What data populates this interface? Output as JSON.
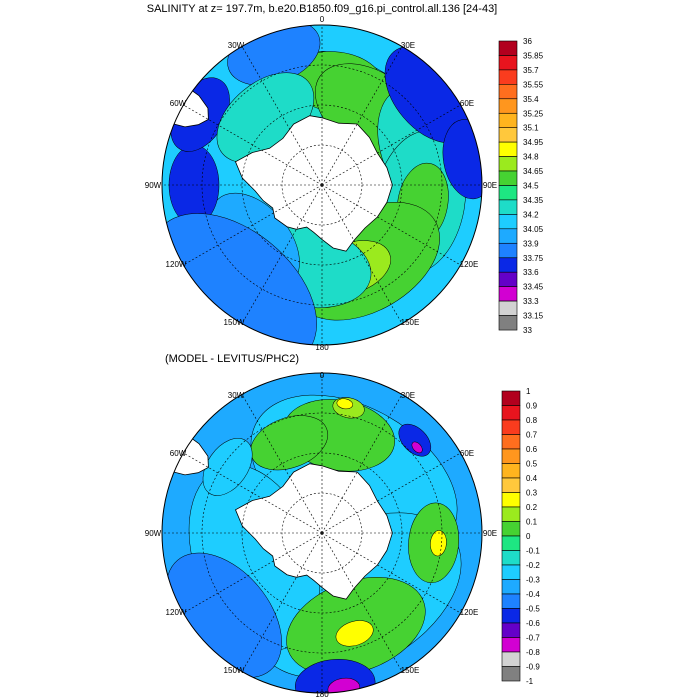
{
  "panels": [
    {
      "id": "top",
      "title": "SALINITY at z= 197.7m, b.e20.B1850.f09_g16.pi_control.all.136 [24-43]",
      "lon_labels": {
        "0": "0",
        "30E": "30E",
        "60E": "60E",
        "90E": "90E",
        "120E": "120E",
        "150E": "150E",
        "180": "180",
        "150W": "150W",
        "120W": "120W",
        "90W": "90W",
        "60W": "60W",
        "30W": "30W"
      },
      "colorbar": {
        "labels": [
          "36",
          "35.85",
          "35.7",
          "35.55",
          "35.4",
          "35.25",
          "35.1",
          "34.95",
          "34.8",
          "34.65",
          "34.5",
          "34.35",
          "34.2",
          "34.05",
          "33.9",
          "33.75",
          "33.6",
          "33.45",
          "33.3",
          "33.15",
          "33"
        ],
        "colors": [
          "#b2001e",
          "#e8141e",
          "#fa3c1e",
          "#ff6e1e",
          "#ff961e",
          "#ffb41e",
          "#ffc83c",
          "#ffff00",
          "#9bea1e",
          "#46d232",
          "#1ee682",
          "#1edcc8",
          "#1ecdff",
          "#1eaaff",
          "#1e82ff",
          "#0a28e6",
          "#6400c8",
          "#d200d2",
          "#d2d2d2",
          "#808080"
        ]
      },
      "fields": {
        "ocean": "#1ecdff",
        "land": "#ffffff",
        "blobs": [
          {
            "c": "#1edcc8",
            "a": 40,
            "r": 0.36,
            "w": 70
          },
          {
            "c": "#46d232",
            "a": 8,
            "r": 0.65,
            "w": 30
          },
          {
            "c": "#46d232",
            "a": 35,
            "r": 0.55,
            "w": 40
          },
          {
            "c": "#1edcc8",
            "a": 70,
            "r": 0.66,
            "w": 40
          },
          {
            "c": "#1edcc8",
            "a": 100,
            "r": 0.62,
            "w": 45
          },
          {
            "c": "#46d232",
            "a": 100,
            "r": 0.64,
            "w": 25
          },
          {
            "c": "#46d232",
            "a": 150,
            "r": 0.55,
            "w": 50
          },
          {
            "c": "#9bea1e",
            "a": 160,
            "r": 0.55,
            "w": 25
          },
          {
            "c": "#1edcc8",
            "a": 190,
            "r": 0.52,
            "w": 40
          },
          {
            "c": "#1eaaff",
            "a": 230,
            "r": 0.55,
            "w": 35
          },
          {
            "c": "#0a28e6",
            "a": 270,
            "r": 0.8,
            "w": 25
          },
          {
            "c": "#0a28e6",
            "a": 300,
            "r": 0.88,
            "w": 25
          },
          {
            "c": "#0a28e6",
            "a": 50,
            "r": 0.88,
            "w": 35
          },
          {
            "c": "#0a28e6",
            "a": 80,
            "r": 0.93,
            "w": 25
          },
          {
            "c": "#1e82ff",
            "a": 220,
            "r": 0.86,
            "w": 60
          },
          {
            "c": "#1e82ff",
            "a": 340,
            "r": 0.88,
            "w": 30
          },
          {
            "c": "#1edcc8",
            "a": 320,
            "r": 0.55,
            "w": 35
          }
        ]
      }
    },
    {
      "id": "bottom",
      "title": "(MODEL - LEVITUS/PHC2)",
      "lon_labels": {
        "0": "0",
        "30E": "30E",
        "60E": "60E",
        "90E": "90E",
        "120E": "120E",
        "150E": "150E",
        "180": "180",
        "150W": "150W",
        "120W": "120W",
        "90W": "90W",
        "60W": "60W",
        "30W": "30W"
      },
      "colorbar": {
        "labels": [
          "1",
          "0.9",
          "0.8",
          "0.7",
          "0.6",
          "0.5",
          "0.4",
          "0.3",
          "0.2",
          "0.1",
          "0",
          "-0.1",
          "-0.2",
          "-0.3",
          "-0.4",
          "-0.5",
          "-0.6",
          "-0.7",
          "-0.8",
          "-0.9",
          "-1"
        ],
        "colors": [
          "#b2001e",
          "#e8141e",
          "#fa3c1e",
          "#ff6e1e",
          "#ff961e",
          "#ffb41e",
          "#ffc83c",
          "#ffff00",
          "#9bea1e",
          "#46d232",
          "#1ee682",
          "#1edcc8",
          "#1ecdff",
          "#1eaaff",
          "#1e82ff",
          "#0a28e6",
          "#6400c8",
          "#d200d2",
          "#d2d2d2",
          "#808080"
        ]
      },
      "fields": {
        "ocean": "#1eaaff",
        "land": "#ffffff",
        "blobs": [
          {
            "c": "#1ecdff",
            "a": 30,
            "r": 0.4,
            "w": 70
          },
          {
            "c": "#1ecdff",
            "a": 150,
            "r": 0.45,
            "w": 70
          },
          {
            "c": "#1ecdff",
            "a": 250,
            "r": 0.45,
            "w": 60
          },
          {
            "c": "#46d232",
            "a": 10,
            "r": 0.62,
            "w": 35
          },
          {
            "c": "#46d232",
            "a": 340,
            "r": 0.6,
            "w": 25
          },
          {
            "c": "#9bea1e",
            "a": 12,
            "r": 0.8,
            "w": 10
          },
          {
            "c": "#ffff00",
            "a": 10,
            "r": 0.82,
            "w": 5
          },
          {
            "c": "#0a28e6",
            "a": 45,
            "r": 0.82,
            "w": 12
          },
          {
            "c": "#d200d2",
            "a": 48,
            "r": 0.8,
            "w": 4
          },
          {
            "c": "#46d232",
            "a": 95,
            "r": 0.7,
            "w": 25
          },
          {
            "c": "#ffff00",
            "a": 95,
            "r": 0.73,
            "w": 8
          },
          {
            "c": "#46d232",
            "a": 160,
            "r": 0.62,
            "w": 45
          },
          {
            "c": "#ffff00",
            "a": 162,
            "r": 0.66,
            "w": 12
          },
          {
            "c": "#1e82ff",
            "a": 230,
            "r": 0.8,
            "w": 45
          },
          {
            "c": "#0a28e6",
            "a": 175,
            "r": 0.95,
            "w": 25
          },
          {
            "c": "#d200d2",
            "a": 172,
            "r": 0.98,
            "w": 10
          },
          {
            "c": "#1ecdff",
            "a": 305,
            "r": 0.72,
            "w": 20
          }
        ]
      }
    }
  ]
}
